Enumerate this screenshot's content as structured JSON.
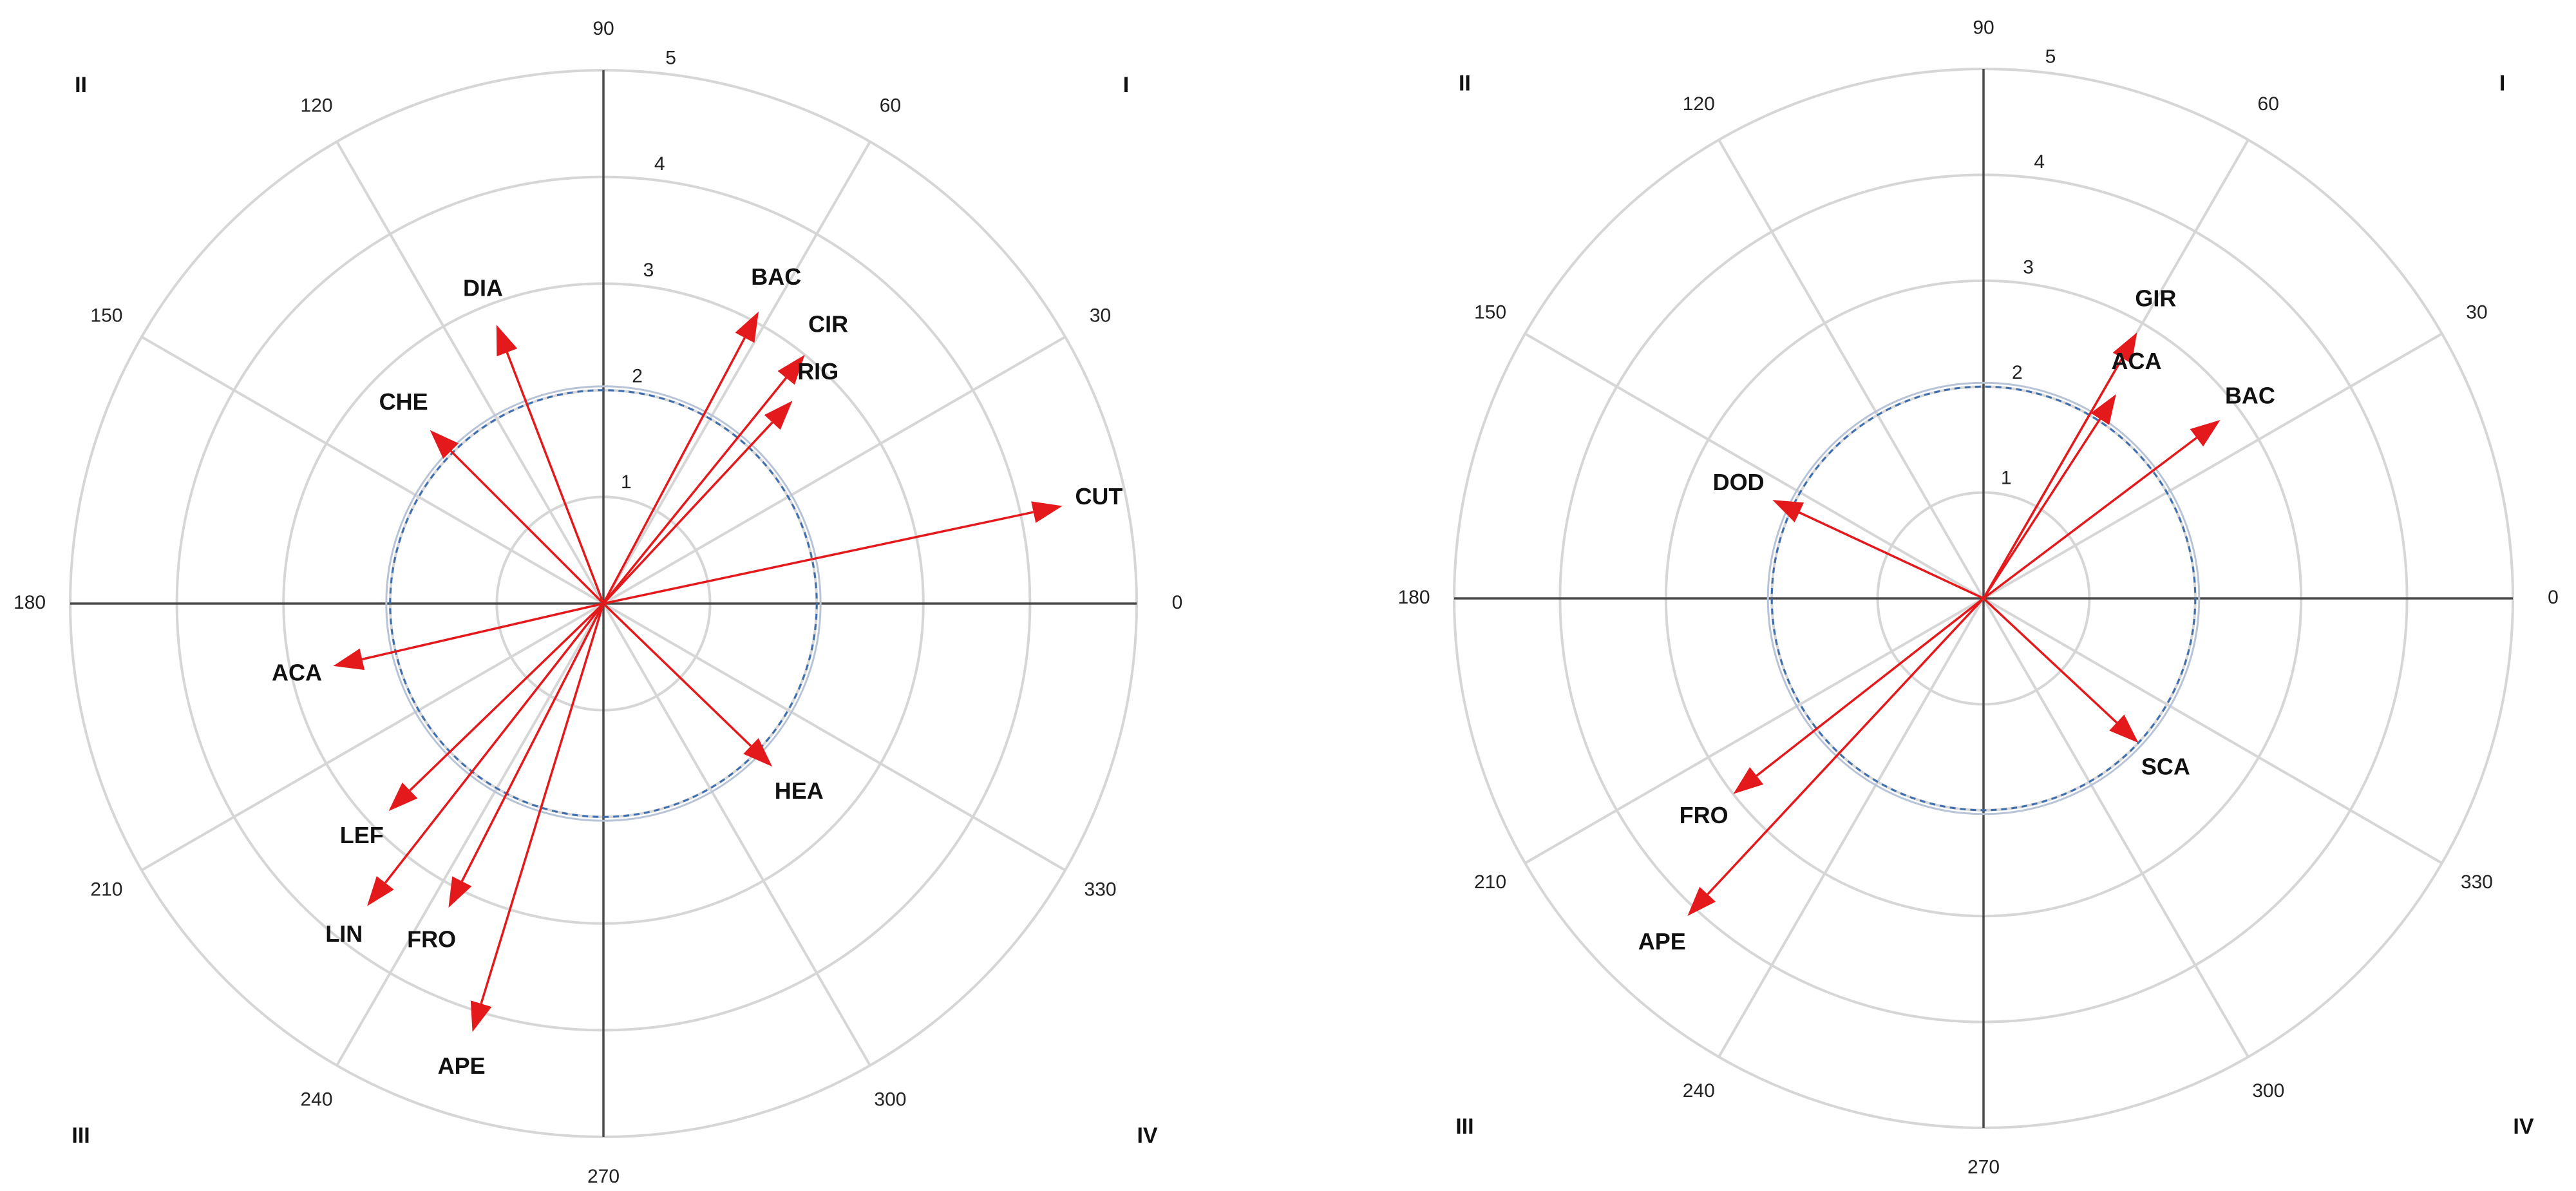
{
  "chart_data": [
    {
      "type": "polar-vector",
      "r_ticks": [
        "1",
        "2",
        "3",
        "4",
        "5"
      ],
      "angle_ticks": [
        "0",
        "30",
        "60",
        "90",
        "120",
        "150",
        "180",
        "210",
        "240",
        "270",
        "300",
        "330"
      ],
      "quadrants": [
        "I",
        "II",
        "III",
        "IV"
      ],
      "rlim": [
        0,
        5
      ],
      "reference_circle_r": 2,
      "vectors": [
        {
          "label": "BAC",
          "angle": 62,
          "magnitude": 3.1
        },
        {
          "label": "CIR",
          "angle": 51,
          "magnitude": 3.0
        },
        {
          "label": "RIG",
          "angle": 47,
          "magnitude": 2.6
        },
        {
          "label": "DIA",
          "angle": 111,
          "magnitude": 2.8
        },
        {
          "label": "CHE",
          "angle": 135,
          "magnitude": 2.3
        },
        {
          "label": "CUT",
          "angle": 12,
          "magnitude": 4.4
        },
        {
          "label": "ACA",
          "angle": 193,
          "magnitude": 2.6
        },
        {
          "label": "HEA",
          "angle": 316,
          "magnitude": 2.2
        },
        {
          "label": "LEF",
          "angle": 224,
          "magnitude": 2.8
        },
        {
          "label": "LIN",
          "angle": 232,
          "magnitude": 3.6
        },
        {
          "label": "FRO",
          "angle": 243,
          "magnitude": 3.2
        },
        {
          "label": "APE",
          "angle": 253,
          "magnitude": 4.2
        }
      ]
    },
    {
      "type": "polar-vector",
      "r_ticks": [
        "1",
        "2",
        "3",
        "4",
        "5"
      ],
      "angle_ticks": [
        "0",
        "30",
        "60",
        "90",
        "120",
        "150",
        "180",
        "210",
        "240",
        "270",
        "300",
        "330"
      ],
      "quadrants": [
        "I",
        "II",
        "III",
        "IV"
      ],
      "rlim": [
        0,
        5
      ],
      "reference_circle_r": 2,
      "vectors": [
        {
          "label": "GIR",
          "angle": 60,
          "magnitude": 2.9
        },
        {
          "label": "ACA",
          "angle": 57,
          "magnitude": 2.3
        },
        {
          "label": "BAC",
          "angle": 37,
          "magnitude": 2.8
        },
        {
          "label": "DOD",
          "angle": 155,
          "magnitude": 2.2
        },
        {
          "label": "SCA",
          "angle": 317,
          "magnitude": 2.0
        },
        {
          "label": "FRO",
          "angle": 218,
          "magnitude": 3.0
        },
        {
          "label": "APE",
          "angle": 227,
          "magnitude": 4.1
        }
      ]
    }
  ]
}
